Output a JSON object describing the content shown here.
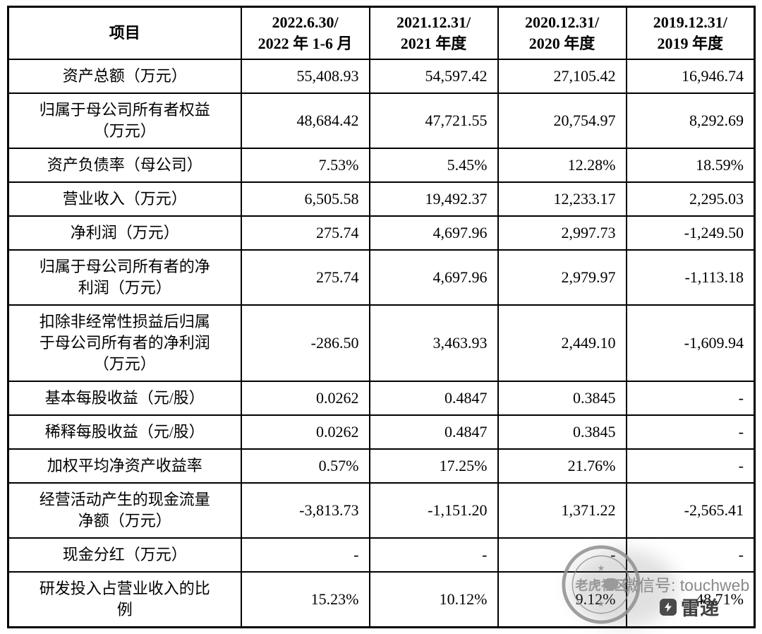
{
  "table": {
    "header": {
      "item_label": "项目",
      "periods": [
        {
          "line1": "2022.6.30/",
          "line2": "2022 年 1-6 月"
        },
        {
          "line1": "2021.12.31/",
          "line2": "2021 年度"
        },
        {
          "line1": "2020.12.31/",
          "line2": "2020 年度"
        },
        {
          "line1": "2019.12.31/",
          "line2": "2019 年度"
        }
      ]
    },
    "rows": [
      {
        "label": "资产总额（万元）",
        "values": [
          "55,408.93",
          "54,597.42",
          "27,105.42",
          "16,946.74"
        ]
      },
      {
        "label": "归属于母公司所有者权益（万元）",
        "values": [
          "48,684.42",
          "47,721.55",
          "20,754.97",
          "8,292.69"
        ]
      },
      {
        "label": "资产负债率（母公司）",
        "values": [
          "7.53%",
          "5.45%",
          "12.28%",
          "18.59%"
        ]
      },
      {
        "label": "营业收入（万元）",
        "values": [
          "6,505.58",
          "19,492.37",
          "12,233.17",
          "2,295.03"
        ]
      },
      {
        "label": "净利润（万元）",
        "values": [
          "275.74",
          "4,697.96",
          "2,997.73",
          "-1,249.50"
        ]
      },
      {
        "label": "归属于母公司所有者的净利润（万元）",
        "values": [
          "275.74",
          "4,697.96",
          "2,979.97",
          "-1,113.18"
        ]
      },
      {
        "label": "扣除非经常性损益后归属于母公司所有者的净利润（万元）",
        "values": [
          "-286.50",
          "3,463.93",
          "2,449.10",
          "-1,609.94"
        ]
      },
      {
        "label": "基本每股收益（元/股）",
        "values": [
          "0.0262",
          "0.4847",
          "0.3845",
          "-"
        ]
      },
      {
        "label": "稀释每股收益（元/股）",
        "values": [
          "0.0262",
          "0.4847",
          "0.3845",
          "-"
        ]
      },
      {
        "label": "加权平均净资产收益率",
        "values": [
          "0.57%",
          "17.25%",
          "21.76%",
          "-"
        ]
      },
      {
        "label": "经营活动产生的现金流量净额（万元）",
        "values": [
          "-3,813.73",
          "-1,151.20",
          "1,371.22",
          "-2,565.41"
        ]
      },
      {
        "label": "现金分红（万元）",
        "values": [
          "-",
          "-",
          "-",
          "-"
        ]
      },
      {
        "label": "研发投入占营业收入的比例",
        "values": [
          "15.23%",
          "10.12%",
          "9.12%",
          "48.71%"
        ]
      }
    ]
  },
  "watermark": {
    "stamp_text": "老虎社区",
    "stamp_star": "★",
    "wechat_label": "微信号: touchweb",
    "brand": "雷递",
    "stamp_color": "#8f8f8f",
    "wechat_color": "#8a8a8a",
    "brand_color": "#3f3f3f"
  }
}
